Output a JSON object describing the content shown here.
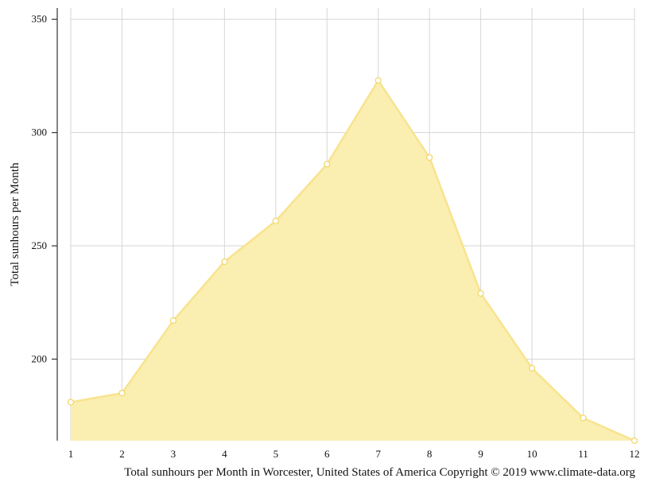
{
  "chart_data": {
    "type": "area",
    "x": [
      1,
      2,
      3,
      4,
      5,
      6,
      7,
      8,
      9,
      10,
      11,
      12
    ],
    "values": [
      181,
      185,
      217,
      243,
      261,
      286,
      323,
      289,
      229,
      196,
      174,
      164
    ],
    "ylabel": "Total sunhours per Month",
    "xlabel": "",
    "ylim": [
      164,
      355
    ],
    "yticks": [
      200,
      250,
      300,
      350
    ],
    "xticks": [
      1,
      2,
      3,
      4,
      5,
      6,
      7,
      8,
      9,
      10,
      11,
      12
    ],
    "caption": "Total sunhours per Month in Worcester, United States of America Copyright © 2019 www.climate-data.org",
    "grid": true,
    "colors": {
      "fill": "#faeeb0",
      "line": "#f8e38f",
      "marker_fill": "#ffffff",
      "marker_stroke": "#f3d86a",
      "grid": "#d6d6d6",
      "axis": "#333333"
    }
  }
}
